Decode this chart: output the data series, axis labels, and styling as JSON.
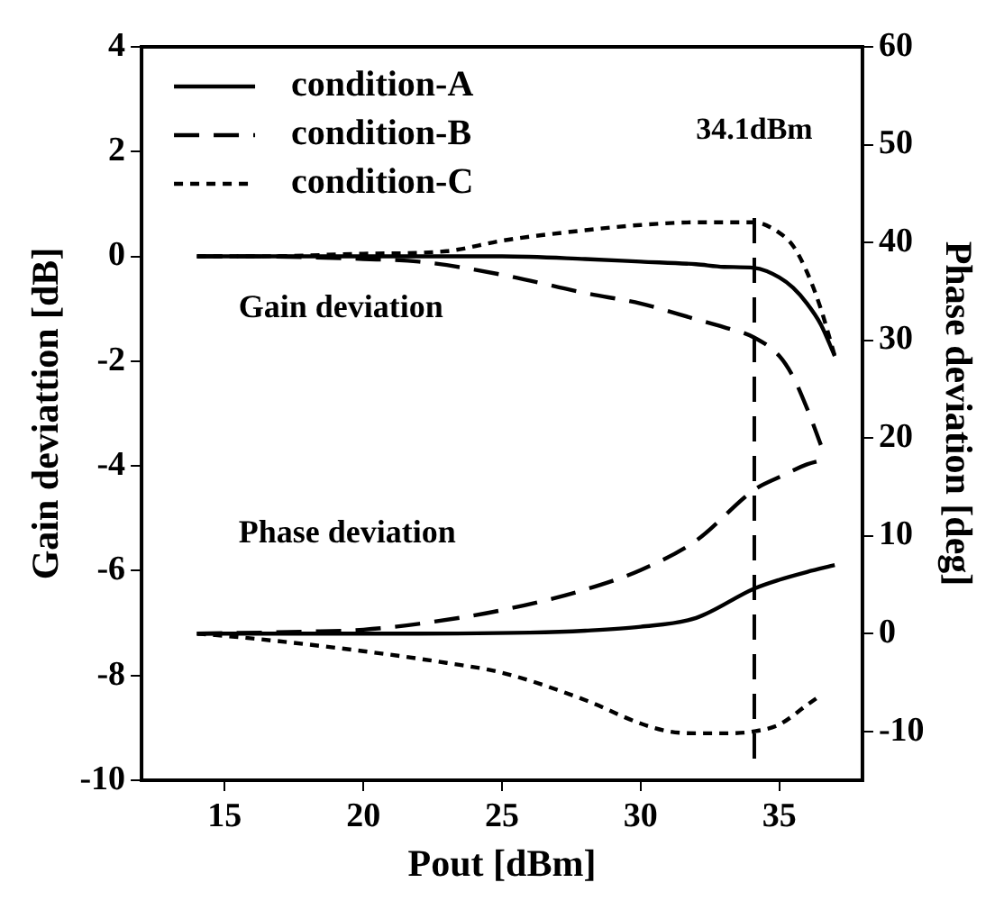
{
  "chart_data": {
    "type": "line",
    "xlabel": "Pout [dBm]",
    "ylabel": "Gain deviattion [dB]",
    "y2label": "Phase deviation [deg]",
    "xlim": [
      12,
      38
    ],
    "xticks": [
      15,
      20,
      25,
      30,
      35
    ],
    "ylim": [
      -10,
      4
    ],
    "yticks": [
      -10,
      -8,
      -6,
      -4,
      -2,
      0,
      2,
      4
    ],
    "y2lim": [
      -15,
      60
    ],
    "y2ticks": [
      -10,
      0,
      10,
      20,
      30,
      40,
      50,
      60
    ],
    "grid": false,
    "legend": "top left",
    "marker": "none",
    "annotations": [
      "Gain deviation",
      "Phase deviation"
    ],
    "ref_lines": [
      {
        "axis": "x",
        "value": 34.1,
        "label": "34.1dBm",
        "line_style": "dashed",
        "color": "#000000"
      }
    ],
    "series": [
      {
        "name": "condition-A",
        "color": "#000000",
        "line_style": "solid",
        "x": [
          14,
          16,
          20,
          25,
          28,
          30,
          32,
          33,
          34.1,
          35,
          35.5,
          36,
          36.5,
          37
        ],
        "values": [
          0,
          0,
          0,
          0,
          -0.05,
          -0.1,
          -0.15,
          -0.2,
          -0.22,
          -0.4,
          -0.6,
          -0.9,
          -1.3,
          -1.9
        ]
      },
      {
        "name": "condition-B",
        "color": "#000000",
        "line_style": "dashed",
        "x": [
          14,
          16,
          20,
          22,
          25,
          28,
          30,
          32,
          33,
          34.1,
          35,
          35.5,
          36,
          36.5
        ],
        "values": [
          0,
          0,
          -0.05,
          -0.1,
          -0.35,
          -0.7,
          -0.9,
          -1.2,
          -1.35,
          -1.55,
          -1.9,
          -2.3,
          -2.9,
          -3.6
        ]
      },
      {
        "name": "condition-C",
        "color": "#000000",
        "line_style": "dotted",
        "x": [
          14,
          16,
          20,
          23,
          25,
          28,
          30,
          32,
          34.1,
          35,
          35.5,
          36,
          36.5,
          37
        ],
        "values": [
          0,
          0,
          0.05,
          0.1,
          0.3,
          0.5,
          0.6,
          0.65,
          0.65,
          0.45,
          0.2,
          -0.3,
          -1.0,
          -1.9
        ]
      },
      {
        "color": "#000000",
        "line_style": "solid",
        "axis": "y2",
        "x": [
          14,
          18,
          22,
          26,
          28,
          30,
          32,
          34.1,
          35,
          36,
          37
        ],
        "values": [
          0,
          0,
          0,
          0.1,
          0.3,
          0.7,
          1.6,
          4.6,
          5.5,
          6.3,
          7
        ]
      },
      {
        "color": "#000000",
        "line_style": "dashed",
        "axis": "y2",
        "x": [
          14,
          18,
          20,
          22,
          25,
          28,
          30,
          32,
          34.1,
          35,
          36,
          36.5
        ],
        "values": [
          0,
          0.2,
          0.4,
          1,
          2.4,
          4.5,
          6.5,
          9.5,
          14.7,
          16,
          17.3,
          17.7
        ]
      },
      {
        "color": "#000000",
        "line_style": "dotted",
        "axis": "y2",
        "x": [
          14,
          16,
          20,
          23,
          25,
          28,
          30,
          31,
          32,
          33,
          34.1,
          35,
          36,
          36.5
        ],
        "values": [
          0,
          -0.5,
          -1.8,
          -3,
          -4,
          -6.8,
          -9.2,
          -10,
          -10.2,
          -10.2,
          -10,
          -9.3,
          -7.3,
          -6.3
        ]
      }
    ]
  }
}
